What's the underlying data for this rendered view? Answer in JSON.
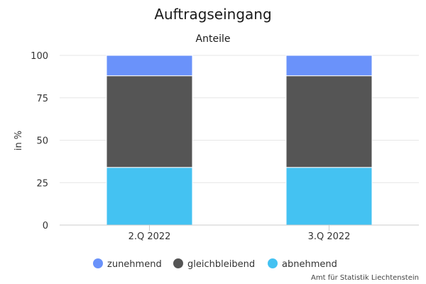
{
  "chart_data": {
    "type": "bar",
    "stacked": true,
    "title": "Auftragseingang",
    "subtitle": "Anteile",
    "xlabel": "",
    "ylabel": "in %",
    "ylim": [
      0,
      100
    ],
    "yticks": [
      0,
      25,
      50,
      75,
      100
    ],
    "grid": true,
    "legend_position": "bottom",
    "categories": [
      "2.Q 2022",
      "3.Q 2022"
    ],
    "series": [
      {
        "name": "abnehmend",
        "color": "#44c2f2",
        "values": [
          34,
          34
        ]
      },
      {
        "name": "gleichbleibend",
        "color": "#555555",
        "values": [
          54,
          54
        ]
      },
      {
        "name": "zunehmend",
        "color": "#6a92fa",
        "values": [
          12,
          12
        ]
      }
    ],
    "legend_order": [
      "zunehmend",
      "gleichbleibend",
      "abnehmend"
    ],
    "credit": "Amt für Statistik Liechtenstein"
  }
}
